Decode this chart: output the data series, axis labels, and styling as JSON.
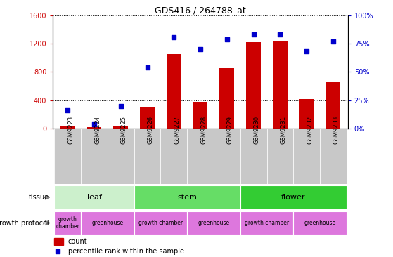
{
  "title": "GDS416 / 264788_at",
  "samples": [
    "GSM9223",
    "GSM9224",
    "GSM9225",
    "GSM9226",
    "GSM9227",
    "GSM9228",
    "GSM9229",
    "GSM9230",
    "GSM9231",
    "GSM9232",
    "GSM9233"
  ],
  "counts": [
    30,
    20,
    25,
    310,
    1050,
    380,
    850,
    1220,
    1240,
    420,
    660
  ],
  "percentiles": [
    16,
    4,
    20,
    54,
    81,
    70,
    79,
    83,
    83,
    68,
    77
  ],
  "ylim_left": [
    0,
    1600
  ],
  "ylim_right": [
    0,
    100
  ],
  "yticks_left": [
    0,
    400,
    800,
    1200,
    1600
  ],
  "yticks_right": [
    0,
    25,
    50,
    75,
    100
  ],
  "bar_color": "#cc0000",
  "dot_color": "#0000cc",
  "tissue_groups": [
    {
      "label": "leaf",
      "start": 0,
      "end": 3
    },
    {
      "label": "stem",
      "start": 3,
      "end": 7
    },
    {
      "label": "flower",
      "start": 7,
      "end": 11
    }
  ],
  "tissue_colors": [
    "#ccf0cc",
    "#66dd66",
    "#33cc33"
  ],
  "protocol_groups": [
    {
      "label": "growth\nchamber",
      "start": 0,
      "end": 1
    },
    {
      "label": "greenhouse",
      "start": 1,
      "end": 3
    },
    {
      "label": "growth chamber",
      "start": 3,
      "end": 5
    },
    {
      "label": "greenhouse",
      "start": 5,
      "end": 7
    },
    {
      "label": "growth chamber",
      "start": 7,
      "end": 9
    },
    {
      "label": "greenhouse",
      "start": 9,
      "end": 11
    }
  ],
  "protocol_color": "#dd77dd",
  "sample_bg_color": "#c8c8c8",
  "fig_bg": "#ffffff"
}
